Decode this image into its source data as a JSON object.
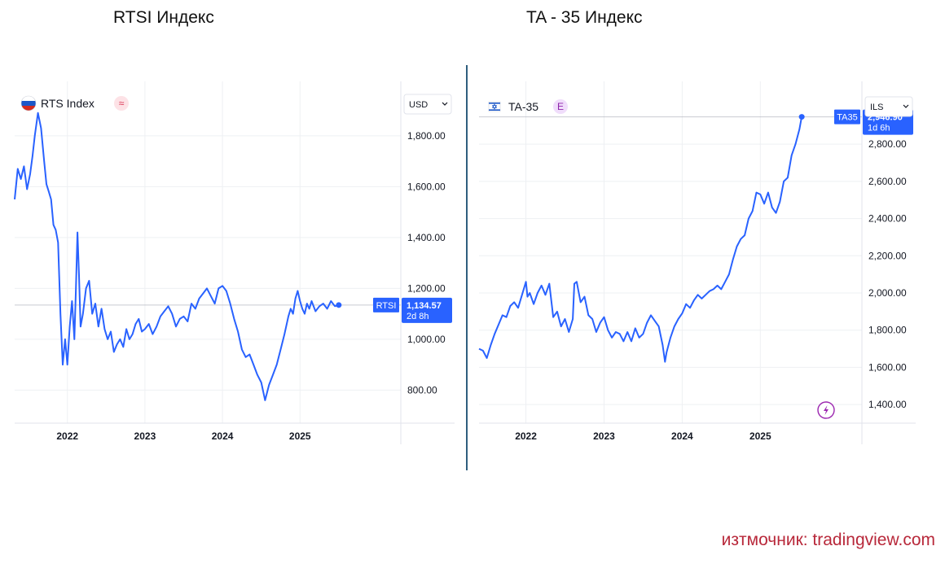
{
  "headings": {
    "left": "RTSI Индекс",
    "right": "TA - 35 Индекс"
  },
  "source": "изтмочник: tradingview.com",
  "colors": {
    "line": "#2962ff",
    "tag_bg": "#2962ff",
    "source": "#b8283a",
    "divider": "#2f5e7e"
  },
  "chart_data": [
    {
      "type": "line",
      "title": "RTS Index",
      "symbol_badge": "≈",
      "symbol_icon": "russia-flag-icon",
      "currency": "USD",
      "price_tag": {
        "label": "RTSI",
        "value": "1,134.57",
        "countdown": "2d 8h",
        "price": 1134.57
      },
      "ylim": [
        670,
        1950
      ],
      "y_ticks": [
        800,
        1000,
        1200,
        1400,
        1600,
        1800
      ],
      "y_tick_labels": [
        "800.00",
        "1,000.00",
        "1,200.00",
        "1,400.00",
        "1,600.00",
        "1,800.00"
      ],
      "xlim": [
        2021.32,
        2026.3
      ],
      "x_ticks": [
        2022,
        2023,
        2024,
        2025
      ],
      "x_tick_labels": [
        "2022",
        "2023",
        "2024",
        "2025"
      ],
      "series": [
        {
          "x": [
            2021.32,
            2021.36,
            2021.4,
            2021.44,
            2021.48,
            2021.52,
            2021.55,
            2021.58,
            2021.62,
            2021.66,
            2021.7,
            2021.73,
            2021.76,
            2021.79,
            2021.82,
            2021.85,
            2021.88,
            2021.91,
            2021.94,
            2021.97,
            2022.0,
            2022.03,
            2022.06,
            2022.09,
            2022.11,
            2022.13,
            2022.15,
            2022.17,
            2022.2,
            2022.24,
            2022.28,
            2022.32,
            2022.36,
            2022.4,
            2022.44,
            2022.48,
            2022.52,
            2022.56,
            2022.6,
            2022.64,
            2022.68,
            2022.72,
            2022.76,
            2022.8,
            2022.84,
            2022.88,
            2022.92,
            2022.96,
            2023.0,
            2023.05,
            2023.1,
            2023.15,
            2023.2,
            2023.25,
            2023.3,
            2023.35,
            2023.4,
            2023.45,
            2023.5,
            2023.55,
            2023.6,
            2023.65,
            2023.7,
            2023.75,
            2023.8,
            2023.85,
            2023.9,
            2023.95,
            2024.0,
            2024.05,
            2024.1,
            2024.15,
            2024.2,
            2024.25,
            2024.3,
            2024.35,
            2024.4,
            2024.45,
            2024.5,
            2024.55,
            2024.6,
            2024.65,
            2024.7,
            2024.75,
            2024.8,
            2024.85,
            2024.88,
            2024.91,
            2024.94,
            2024.97,
            2025.0,
            2025.03,
            2025.06,
            2025.09,
            2025.12,
            2025.15,
            2025.2,
            2025.25,
            2025.3,
            2025.35,
            2025.4,
            2025.45,
            2025.5
          ],
          "values": [
            1550,
            1670,
            1630,
            1680,
            1590,
            1650,
            1720,
            1800,
            1890,
            1830,
            1700,
            1610,
            1580,
            1550,
            1450,
            1430,
            1380,
            1100,
            900,
            1000,
            900,
            1050,
            1150,
            1000,
            1200,
            1420,
            1250,
            1050,
            1100,
            1200,
            1230,
            1100,
            1140,
            1050,
            1120,
            1040,
            1000,
            1030,
            950,
            980,
            1000,
            970,
            1040,
            1000,
            1020,
            1060,
            1080,
            1030,
            1040,
            1060,
            1020,
            1050,
            1090,
            1110,
            1130,
            1100,
            1050,
            1080,
            1090,
            1070,
            1140,
            1120,
            1160,
            1180,
            1200,
            1170,
            1140,
            1200,
            1210,
            1190,
            1140,
            1080,
            1030,
            960,
            930,
            940,
            900,
            860,
            830,
            760,
            820,
            860,
            900,
            960,
            1020,
            1090,
            1120,
            1100,
            1160,
            1190,
            1150,
            1120,
            1100,
            1140,
            1120,
            1150,
            1110,
            1130,
            1140,
            1120,
            1150,
            1130,
            1134.57
          ]
        }
      ]
    },
    {
      "type": "line",
      "title": "TA-35",
      "symbol_badge": "E",
      "symbol_icon": "israel-flag-icon",
      "currency": "ILS",
      "price_tag": {
        "label": "TA35",
        "value": "2,946.90",
        "countdown": "1d 6h",
        "price": 2946.9
      },
      "ylim": [
        1300,
        3050
      ],
      "y_ticks": [
        1400,
        1600,
        1800,
        2000,
        2200,
        2400,
        2600,
        2800
      ],
      "y_tick_labels": [
        "1,400.00",
        "1,600.00",
        "1,800.00",
        "2,000.00",
        "2,200.00",
        "2,400.00",
        "2,600.00",
        "2,800.00"
      ],
      "xlim": [
        2021.4,
        2026.3
      ],
      "x_ticks": [
        2022,
        2023,
        2024,
        2025
      ],
      "x_tick_labels": [
        "2022",
        "2023",
        "2024",
        "2025"
      ],
      "series": [
        {
          "x": [
            2021.4,
            2021.45,
            2021.5,
            2021.55,
            2021.6,
            2021.65,
            2021.7,
            2021.75,
            2021.8,
            2021.85,
            2021.9,
            2021.95,
            2022.0,
            2022.02,
            2022.05,
            2022.1,
            2022.15,
            2022.2,
            2022.25,
            2022.3,
            2022.35,
            2022.4,
            2022.45,
            2022.5,
            2022.55,
            2022.6,
            2022.62,
            2022.65,
            2022.7,
            2022.75,
            2022.8,
            2022.85,
            2022.9,
            2022.95,
            2023.0,
            2023.05,
            2023.1,
            2023.15,
            2023.2,
            2023.25,
            2023.3,
            2023.35,
            2023.4,
            2023.45,
            2023.5,
            2023.55,
            2023.6,
            2023.65,
            2023.7,
            2023.75,
            2023.78,
            2023.8,
            2023.85,
            2023.9,
            2023.95,
            2024.0,
            2024.05,
            2024.1,
            2024.15,
            2024.2,
            2024.25,
            2024.3,
            2024.35,
            2024.4,
            2024.45,
            2024.5,
            2024.55,
            2024.6,
            2024.65,
            2024.7,
            2024.75,
            2024.8,
            2024.85,
            2024.9,
            2024.95,
            2025.0,
            2025.05,
            2025.1,
            2025.15,
            2025.2,
            2025.25,
            2025.3,
            2025.35,
            2025.4,
            2025.45,
            2025.5,
            2025.53
          ],
          "values": [
            1700,
            1690,
            1650,
            1720,
            1780,
            1830,
            1880,
            1870,
            1930,
            1950,
            1920,
            1990,
            2060,
            1980,
            2000,
            1940,
            2000,
            2040,
            1990,
            2050,
            1870,
            1900,
            1820,
            1860,
            1790,
            1860,
            2050,
            2060,
            1950,
            1980,
            1880,
            1860,
            1790,
            1840,
            1870,
            1800,
            1760,
            1790,
            1780,
            1740,
            1790,
            1740,
            1810,
            1760,
            1780,
            1840,
            1880,
            1850,
            1820,
            1720,
            1630,
            1680,
            1760,
            1820,
            1860,
            1890,
            1940,
            1920,
            1960,
            1990,
            1970,
            1990,
            2010,
            2020,
            2040,
            2020,
            2060,
            2100,
            2180,
            2250,
            2290,
            2310,
            2400,
            2440,
            2540,
            2530,
            2480,
            2540,
            2460,
            2430,
            2490,
            2600,
            2620,
            2740,
            2800,
            2880,
            2946.9
          ]
        }
      ]
    }
  ]
}
